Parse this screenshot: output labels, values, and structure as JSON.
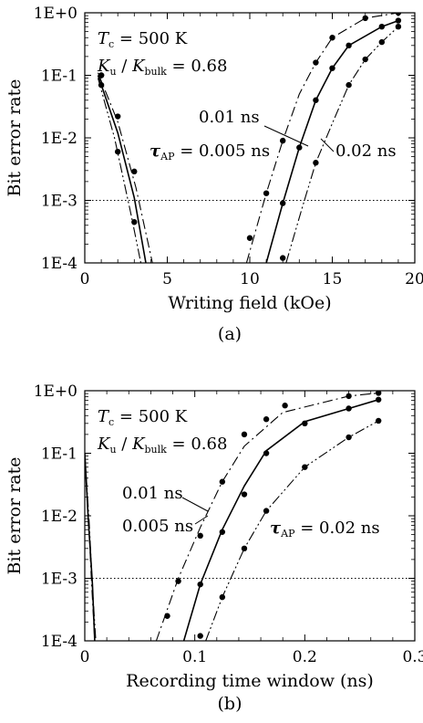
{
  "chart_data": [
    {
      "panel_label": "(a)",
      "type": "line",
      "xlabel": "Writing field (kOe)",
      "ylabel": "Bit error rate",
      "xlim": [
        0,
        20
      ],
      "ylim": [
        0.0001,
        1
      ],
      "yscale": "log",
      "grid": false,
      "x_tick_labels": [
        "0",
        "5",
        "10",
        "15",
        "20"
      ],
      "x_tick_values": [
        0,
        5,
        10,
        15,
        20
      ],
      "y_tick_labels": [
        "1E-4",
        "1E-3",
        "1E-2",
        "1E-1",
        "1E+0"
      ],
      "y_tick_values": [
        0.0001,
        0.001,
        0.01,
        0.1,
        1
      ],
      "reference_line": {
        "y": 0.001,
        "style": "dotted"
      },
      "annotations": {
        "tc_symbol": "T",
        "tc_sub": "c",
        "tc_value": " = 500 K",
        "ku_symbol": "K",
        "ku_sub": "u",
        "ku_slash": " / ",
        "kbulk_symbol": "K",
        "kbulk_sub": "bulk",
        "ku_value": " = 0.68",
        "label_001": "0.01 ns",
        "tau_symbol": "τ",
        "tau_sub": "AP",
        "tau_value": " = 0.005 ns",
        "label_002": "0.02 ns"
      },
      "series": [
        {
          "tau": 0.01,
          "style": "solid",
          "low_field": [
            [
              0.8,
              0.1
            ],
            [
              2.0,
              0.012
            ],
            [
              3.0,
              0.0011
            ],
            [
              3.7,
              0.0001
            ]
          ],
          "high_field": [
            [
              11.0,
              0.0001
            ],
            [
              12.0,
              0.0009
            ],
            [
              13.0,
              0.007
            ],
            [
              14.0,
              0.04
            ],
            [
              15.0,
              0.13
            ],
            [
              16.0,
              0.3
            ],
            [
              18.0,
              0.6
            ],
            [
              19.0,
              0.75
            ]
          ],
          "points": [
            [
              1.0,
              0.1
            ],
            [
              12.0,
              0.0009
            ],
            [
              13.0,
              0.007
            ],
            [
              14.0,
              0.04
            ],
            [
              15.0,
              0.13
            ],
            [
              16.0,
              0.3
            ],
            [
              18.0,
              0.6
            ],
            [
              19.0,
              0.75
            ]
          ]
        },
        {
          "tau": 0.005,
          "style": "dash-dot",
          "low_field": [
            [
              0.8,
              0.11
            ],
            [
              2.0,
              0.018
            ],
            [
              3.1,
              0.0016
            ],
            [
              4.1,
              0.0001
            ]
          ],
          "high_field": [
            [
              9.8,
              0.0001
            ],
            [
              11.0,
              0.0013
            ],
            [
              12.0,
              0.009
            ],
            [
              13.0,
              0.05
            ],
            [
              14.0,
              0.16
            ],
            [
              15.0,
              0.4
            ],
            [
              17.0,
              0.82
            ],
            [
              19.0,
              1.0
            ]
          ],
          "points": [
            [
              1.0,
              0.1
            ],
            [
              2.0,
              0.022
            ],
            [
              3.0,
              0.0029
            ],
            [
              10.0,
              0.00025
            ],
            [
              11.0,
              0.0013
            ],
            [
              12.0,
              0.009
            ],
            [
              14.0,
              0.16
            ],
            [
              15.0,
              0.4
            ],
            [
              17.0,
              0.82
            ],
            [
              19.0,
              1.0
            ]
          ]
        },
        {
          "tau": 0.02,
          "style": "dash-dot-dot",
          "low_field": [
            [
              0.8,
              0.09
            ],
            [
              1.8,
              0.01
            ],
            [
              2.8,
              0.0006
            ],
            [
              3.4,
              0.0001
            ]
          ],
          "high_field": [
            [
              12.2,
              0.0001
            ],
            [
              13.2,
              0.0008
            ],
            [
              14.0,
              0.004
            ],
            [
              15.0,
              0.017
            ],
            [
              16.0,
              0.07
            ],
            [
              17.0,
              0.18
            ],
            [
              18.0,
              0.34
            ],
            [
              19.0,
              0.6
            ]
          ],
          "points": [
            [
              1.0,
              0.07
            ],
            [
              2.0,
              0.006
            ],
            [
              3.0,
              0.00045
            ],
            [
              12.0,
              0.00012
            ],
            [
              14.0,
              0.004
            ],
            [
              16.0,
              0.07
            ],
            [
              17.0,
              0.18
            ],
            [
              18.0,
              0.34
            ],
            [
              19.0,
              0.6
            ]
          ]
        }
      ]
    },
    {
      "panel_label": "(b)",
      "type": "line",
      "xlabel": "Recording time window (ns)",
      "ylabel": "Bit error rate",
      "xlim": [
        0,
        0.3
      ],
      "ylim": [
        0.0001,
        1
      ],
      "yscale": "log",
      "grid": false,
      "x_tick_labels": [
        "0",
        "0.1",
        "0.2",
        "0.3"
      ],
      "x_tick_values": [
        0,
        0.1,
        0.2,
        0.3
      ],
      "y_tick_labels": [
        "1E-4",
        "1E-3",
        "1E-2",
        "1E-1",
        "1E+0"
      ],
      "y_tick_values": [
        0.0001,
        0.001,
        0.01,
        0.1,
        1
      ],
      "reference_line": {
        "y": 0.001,
        "style": "dotted"
      },
      "annotations": {
        "tc_symbol": "T",
        "tc_sub": "c",
        "tc_value": " = 500 K",
        "ku_symbol": "K",
        "ku_sub": "u",
        "ku_slash": " / ",
        "kbulk_symbol": "K",
        "kbulk_sub": "bulk",
        "ku_value": " = 0.68",
        "label_001": "0.01 ns",
        "label_0005": "0.005 ns",
        "tau_symbol": "τ",
        "tau_sub": "AP",
        "tau_value": " = 0.02 ns"
      },
      "series": [
        {
          "tau": 0.01,
          "style": "solid",
          "low_window": [
            [
              0.0,
              0.1
            ],
            [
              0.003,
              0.01
            ],
            [
              0.007,
              0.0008
            ],
            [
              0.009,
              0.0001
            ]
          ],
          "high_window": [
            [
              0.09,
              0.0001
            ],
            [
              0.105,
              0.0008
            ],
            [
              0.125,
              0.006
            ],
            [
              0.145,
              0.03
            ],
            [
              0.165,
              0.11
            ],
            [
              0.2,
              0.32
            ],
            [
              0.24,
              0.52
            ],
            [
              0.267,
              0.72
            ]
          ],
          "points": [
            [
              0.105,
              0.0008
            ],
            [
              0.125,
              0.0055
            ],
            [
              0.145,
              0.022
            ],
            [
              0.165,
              0.1
            ],
            [
              0.2,
              0.3
            ],
            [
              0.24,
              0.52
            ],
            [
              0.267,
              0.72
            ]
          ]
        },
        {
          "tau": 0.005,
          "style": "dash-dot",
          "low_window": [
            [
              0.0,
              0.09
            ],
            [
              0.003,
              0.012
            ],
            [
              0.006,
              0.001
            ],
            [
              0.009,
              0.0001
            ]
          ],
          "high_window": [
            [
              0.065,
              0.0001
            ],
            [
              0.085,
              0.001
            ],
            [
              0.105,
              0.0065
            ],
            [
              0.125,
              0.035
            ],
            [
              0.145,
              0.13
            ],
            [
              0.18,
              0.45
            ],
            [
              0.24,
              0.82
            ],
            [
              0.267,
              0.92
            ]
          ],
          "points": [
            [
              0.085,
              0.0009
            ],
            [
              0.105,
              0.0048
            ],
            [
              0.125,
              0.035
            ],
            [
              0.145,
              0.2
            ],
            [
              0.165,
              0.35
            ],
            [
              0.182,
              0.58
            ],
            [
              0.24,
              0.82
            ],
            [
              0.267,
              0.92
            ]
          ]
        },
        {
          "tau": 0.02,
          "style": "dash-dot-dot",
          "low_window": [
            [
              0.0,
              0.1
            ],
            [
              0.004,
              0.008
            ],
            [
              0.007,
              0.0007
            ],
            [
              0.01,
              0.0001
            ]
          ],
          "high_window": [
            [
              0.11,
              0.0001
            ],
            [
              0.125,
              0.0005
            ],
            [
              0.145,
              0.003
            ],
            [
              0.165,
              0.012
            ],
            [
              0.2,
              0.06
            ],
            [
              0.24,
              0.18
            ],
            [
              0.267,
              0.33
            ]
          ],
          "points": [
            [
              0.075,
              0.00025
            ],
            [
              0.105,
              0.00012
            ],
            [
              0.125,
              0.0005
            ],
            [
              0.145,
              0.003
            ],
            [
              0.165,
              0.012
            ],
            [
              0.2,
              0.06
            ],
            [
              0.24,
              0.18
            ],
            [
              0.267,
              0.33
            ]
          ]
        }
      ]
    }
  ]
}
